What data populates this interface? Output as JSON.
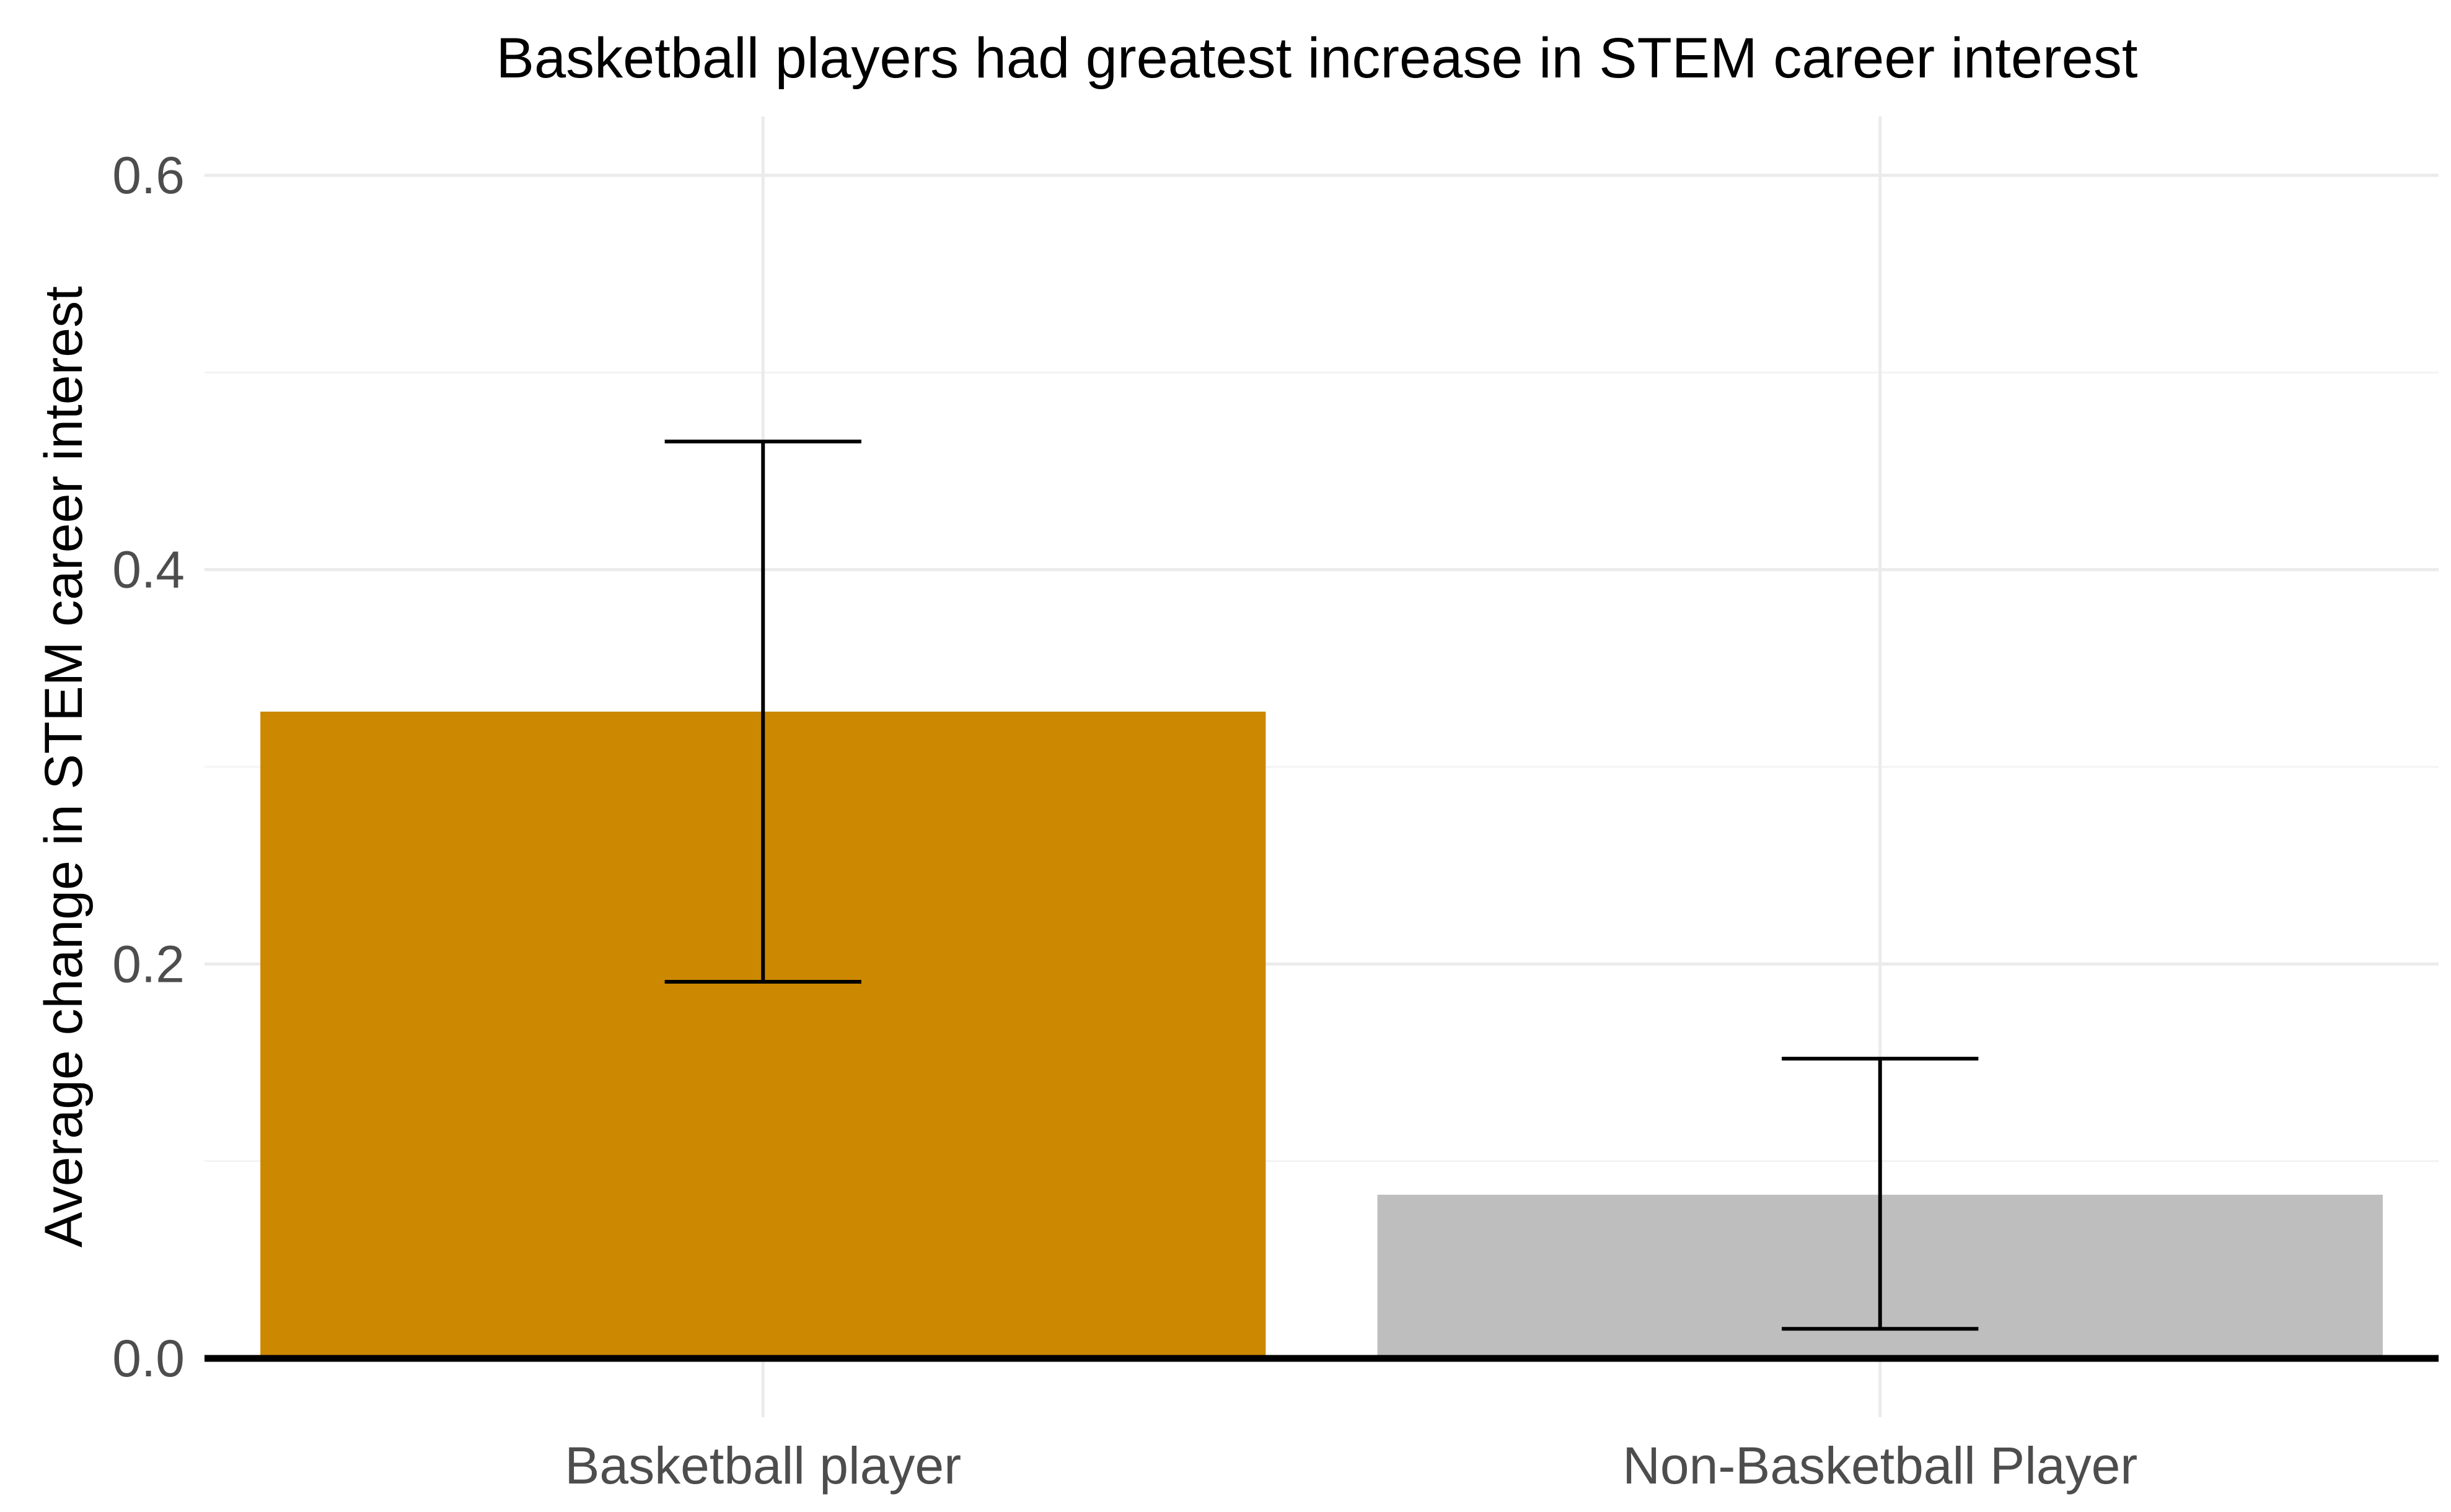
{
  "chart_data": {
    "type": "bar",
    "title": "Basketball players had greatest increase in STEM career interest",
    "xlabel": "",
    "ylabel": "Average change in STEM career interest",
    "categories": [
      "Basketball player",
      "Non-Basketball Player"
    ],
    "values": [
      0.328,
      0.083
    ],
    "error_low": [
      0.191,
      0.015
    ],
    "error_high": [
      0.465,
      0.152
    ],
    "colors": [
      "#CC8800",
      "#BEBEBE"
    ],
    "ylim": [
      0,
      0.6
    ],
    "yticks": [
      0.0,
      0.2,
      0.4,
      0.6
    ],
    "ytick_labels": [
      "0.0",
      "0.2",
      "0.4",
      "0.6"
    ],
    "grid": true,
    "legend": "none"
  }
}
